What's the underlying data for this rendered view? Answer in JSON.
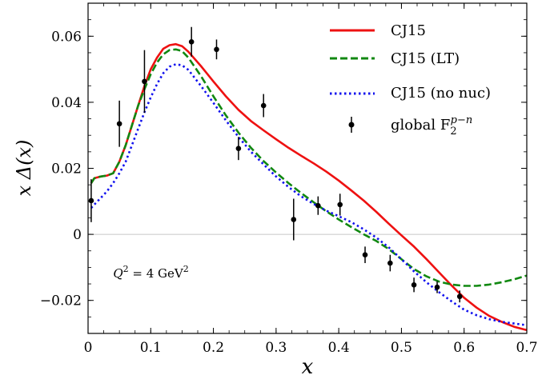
{
  "chart_data": {
    "type": "line",
    "xlabel": "x",
    "ylabel": "x Δ(x)",
    "xlim": [
      0,
      0.7
    ],
    "ylim": [
      -0.03,
      0.07
    ],
    "x_ticks": [
      0,
      0.1,
      0.2,
      0.3,
      0.4,
      0.5,
      0.6,
      0.7
    ],
    "x_tick_labels": [
      "0",
      "0.1",
      "0.2",
      "0.3",
      "0.4",
      "0.5",
      "0.6",
      "0.7"
    ],
    "y_ticks": [
      -0.02,
      0,
      0.02,
      0.04,
      0.06
    ],
    "y_tick_labels": [
      "−0.02",
      "0",
      "0.02",
      "0.04",
      "0.06"
    ],
    "zero_line": true,
    "legend_position": "top-right",
    "annotation": {
      "text_main": "Q",
      "text_sup": "2",
      "text_rest": " = 4 GeV",
      "text_sup2": "2",
      "x": 0.04,
      "y": -0.013
    },
    "series": [
      {
        "name": "CJ15",
        "color": "#ee1111",
        "style": "solid",
        "x": [
          0.005,
          0.01,
          0.02,
          0.03,
          0.04,
          0.05,
          0.06,
          0.07,
          0.08,
          0.09,
          0.1,
          0.11,
          0.12,
          0.13,
          0.14,
          0.15,
          0.16,
          0.18,
          0.2,
          0.22,
          0.24,
          0.26,
          0.28,
          0.3,
          0.32,
          0.34,
          0.36,
          0.38,
          0.4,
          0.42,
          0.44,
          0.46,
          0.48,
          0.5,
          0.52,
          0.54,
          0.56,
          0.58,
          0.6,
          0.62,
          0.64,
          0.66,
          0.68,
          0.7
        ],
        "y": [
          0.0155,
          0.017,
          0.0175,
          0.0178,
          0.0185,
          0.022,
          0.027,
          0.033,
          0.039,
          0.045,
          0.05,
          0.0535,
          0.0562,
          0.0573,
          0.0576,
          0.057,
          0.0553,
          0.051,
          0.0463,
          0.0418,
          0.0377,
          0.0343,
          0.0315,
          0.0288,
          0.0262,
          0.0238,
          0.0215,
          0.019,
          0.0163,
          0.0133,
          0.0102,
          0.0068,
          0.0032,
          -0.0003,
          -0.0037,
          -0.0075,
          -0.0115,
          -0.0155,
          -0.0192,
          -0.0222,
          -0.0247,
          -0.0265,
          -0.028,
          -0.029
        ]
      },
      {
        "name": "CJ15 (LT)",
        "color": "#118811",
        "style": "dashed",
        "x": [
          0.005,
          0.01,
          0.02,
          0.03,
          0.04,
          0.05,
          0.06,
          0.07,
          0.08,
          0.09,
          0.1,
          0.11,
          0.12,
          0.13,
          0.14,
          0.15,
          0.16,
          0.18,
          0.2,
          0.22,
          0.24,
          0.26,
          0.28,
          0.3,
          0.32,
          0.34,
          0.36,
          0.38,
          0.4,
          0.42,
          0.44,
          0.46,
          0.48,
          0.5,
          0.52,
          0.54,
          0.56,
          0.58,
          0.6,
          0.62,
          0.64,
          0.66,
          0.68,
          0.7
        ],
        "y": [
          0.0155,
          0.017,
          0.0175,
          0.0178,
          0.0185,
          0.022,
          0.027,
          0.033,
          0.039,
          0.044,
          0.0485,
          0.052,
          0.0545,
          0.0558,
          0.056,
          0.0555,
          0.0535,
          0.048,
          0.0418,
          0.036,
          0.0308,
          0.0262,
          0.0222,
          0.0187,
          0.0155,
          0.0125,
          0.0097,
          0.007,
          0.0045,
          0.0022,
          0.0,
          -0.002,
          -0.0045,
          -0.0075,
          -0.0105,
          -0.0127,
          -0.0143,
          -0.0152,
          -0.0156,
          -0.0156,
          -0.0152,
          -0.0145,
          -0.0136,
          -0.0125
        ]
      },
      {
        "name": "CJ15 (no nuc)",
        "color": "#1111ee",
        "style": "dotted",
        "x": [
          0.005,
          0.01,
          0.02,
          0.03,
          0.04,
          0.05,
          0.06,
          0.07,
          0.08,
          0.09,
          0.1,
          0.11,
          0.12,
          0.13,
          0.14,
          0.15,
          0.16,
          0.18,
          0.2,
          0.22,
          0.24,
          0.26,
          0.28,
          0.3,
          0.32,
          0.34,
          0.36,
          0.38,
          0.4,
          0.42,
          0.44,
          0.46,
          0.48,
          0.5,
          0.52,
          0.54,
          0.56,
          0.58,
          0.6,
          0.62,
          0.64,
          0.66,
          0.68,
          0.7
        ],
        "y": [
          0.008,
          0.009,
          0.011,
          0.013,
          0.0155,
          0.0185,
          0.022,
          0.027,
          0.032,
          0.037,
          0.0415,
          0.0455,
          0.0488,
          0.0508,
          0.0515,
          0.0512,
          0.0498,
          0.045,
          0.0398,
          0.0345,
          0.0295,
          0.025,
          0.0212,
          0.0175,
          0.0143,
          0.0115,
          0.0092,
          0.0072,
          0.0055,
          0.0037,
          0.0015,
          -0.001,
          -0.004,
          -0.0075,
          -0.0112,
          -0.0145,
          -0.0175,
          -0.0203,
          -0.0228,
          -0.0245,
          -0.0257,
          -0.0265,
          -0.027,
          -0.0275
        ]
      }
    ],
    "points": {
      "name": "global F",
      "name_sub": "2",
      "name_sup": "p−n",
      "color": "#000000",
      "x": [
        0.005,
        0.05,
        0.09,
        0.165,
        0.205,
        0.24,
        0.28,
        0.328,
        0.367,
        0.402,
        0.442,
        0.482,
        0.52,
        0.557,
        0.593
      ],
      "y": [
        0.0102,
        0.0335,
        0.0463,
        0.0583,
        0.056,
        0.026,
        0.039,
        0.0045,
        0.0087,
        0.009,
        -0.0062,
        -0.0087,
        -0.0153,
        -0.016,
        -0.0188
      ],
      "err": [
        0.0065,
        0.007,
        0.0095,
        0.0045,
        0.003,
        0.0035,
        0.0035,
        0.0063,
        0.0028,
        0.0033,
        0.0025,
        0.0025,
        0.0022,
        0.0018,
        0.0018
      ]
    }
  }
}
